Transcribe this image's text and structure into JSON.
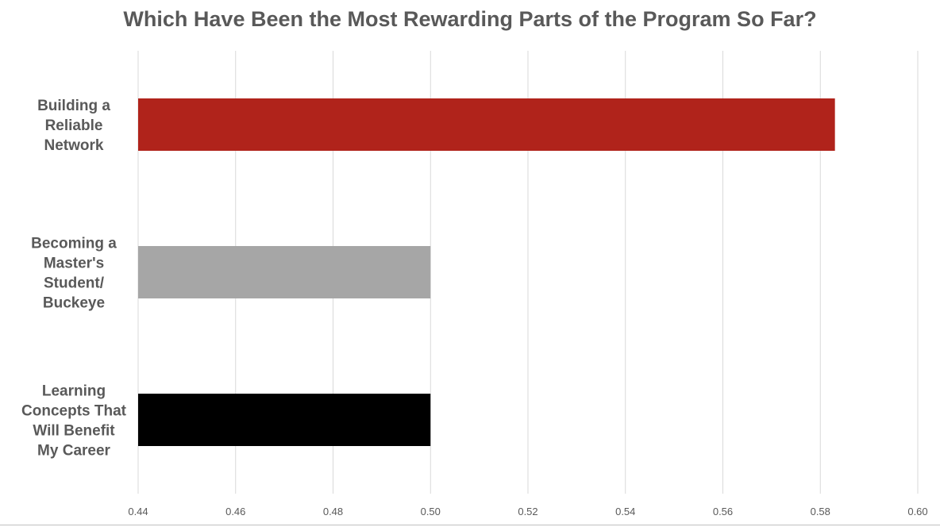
{
  "chart_data": {
    "type": "bar",
    "orientation": "horizontal",
    "title": "Which Have Been the Most Rewarding Parts of the Program So Far?",
    "categories": [
      [
        "Building a",
        "Reliable",
        "Network"
      ],
      [
        "Becoming a",
        "Master's",
        "Student/",
        "Buckeye"
      ],
      [
        "Learning",
        "Concepts That",
        "Will Benefit",
        "My Career"
      ]
    ],
    "values": [
      0.583,
      0.5,
      0.5
    ],
    "colors": [
      "#b0231b",
      "#a6a6a6",
      "#000000"
    ],
    "xlim": [
      0.44,
      0.6
    ],
    "ticks": [
      "0.44",
      "0.46",
      "0.48",
      "0.50",
      "0.52",
      "0.54",
      "0.56",
      "0.58",
      "0.60"
    ],
    "xlabel": "",
    "ylabel": "",
    "grid": "vertical",
    "legend": "none"
  }
}
